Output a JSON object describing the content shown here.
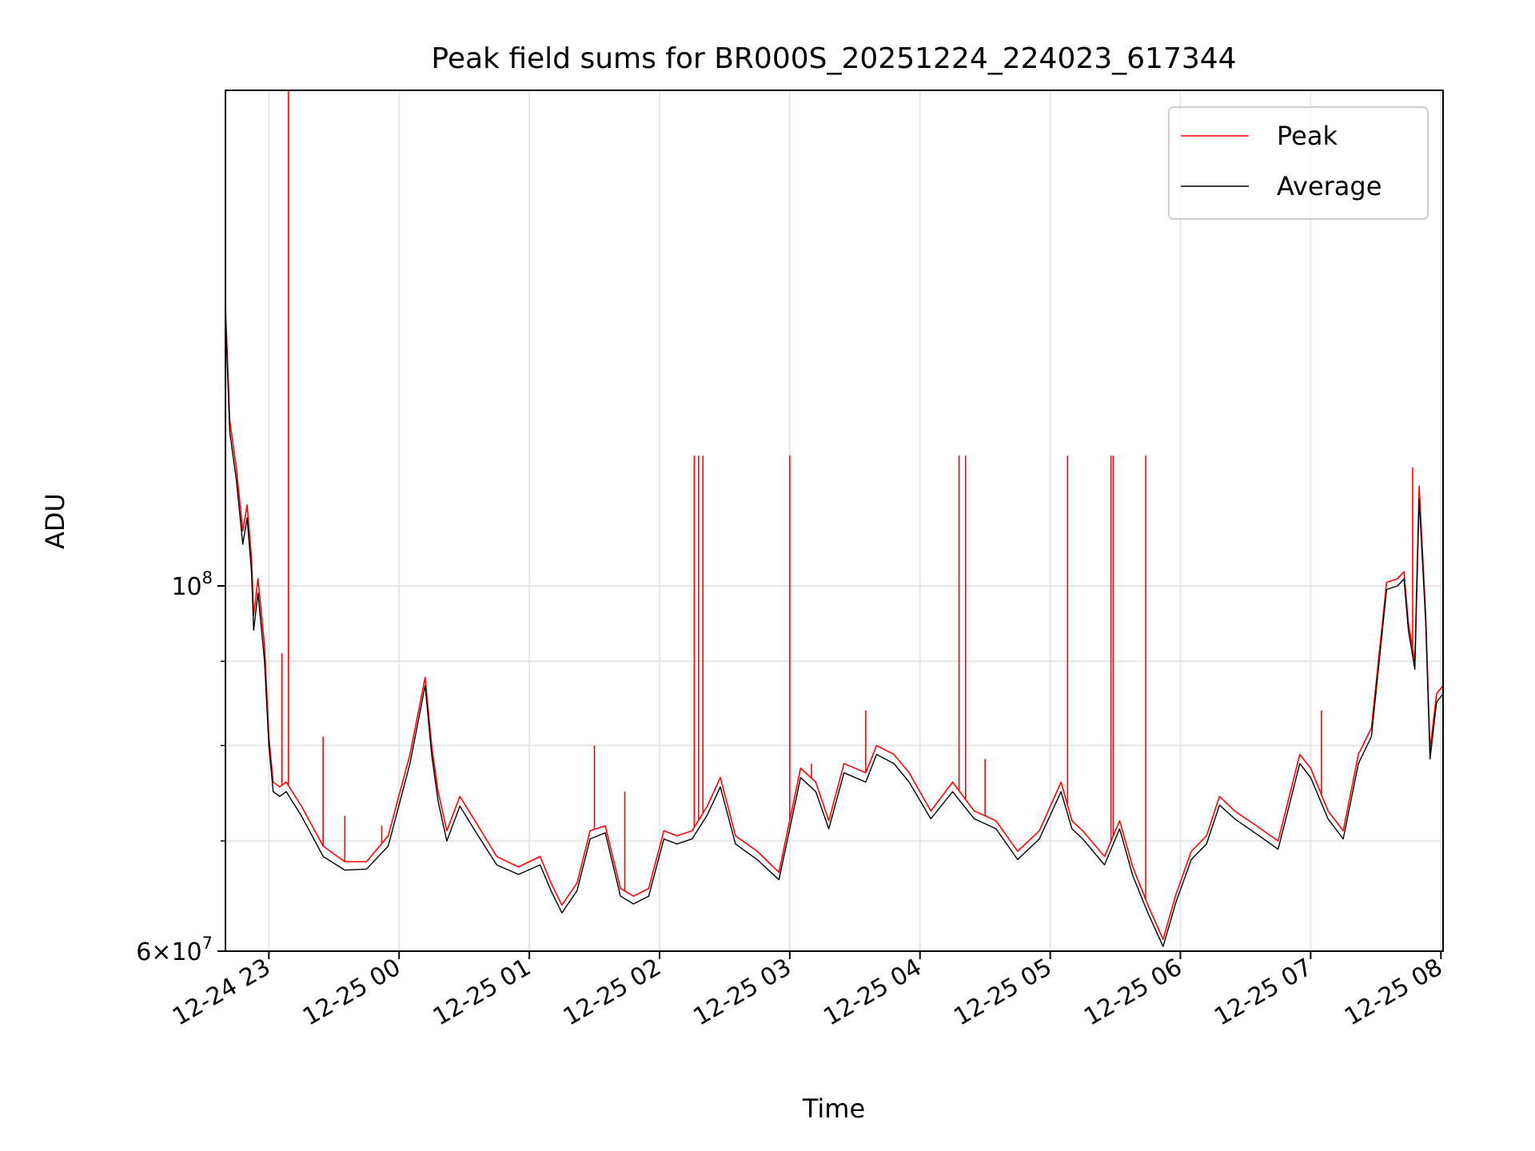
{
  "chart_data": {
    "type": "line",
    "title": "Peak field sums for BR000S_20251224_224023_617344",
    "xlabel": "Time",
    "ylabel": "ADU",
    "yscale": "log",
    "ylim": [
      60000000,
      200000000
    ],
    "xlim": [
      "12-24 22:40",
      "12-25 08:01"
    ],
    "grid": true,
    "legend_position": "top-right",
    "x_tick_labels": [
      "12-24 23",
      "12-25 00",
      "12-25 01",
      "12-25 02",
      "12-25 03",
      "12-25 04",
      "12-25 05",
      "12-25 06",
      "12-25 07",
      "12-25 08"
    ],
    "y_tick_labels": [
      {
        "value": 60000000,
        "base": "6",
        "times": "×10",
        "exp": "7"
      },
      {
        "value": 100000000,
        "base": "",
        "times": "10",
        "exp": "8"
      }
    ],
    "y_minor_ticks": [
      70000000,
      80000000,
      90000000
    ],
    "x": [
      "12-24 22:40",
      "12-24 22:42",
      "12-24 22:45",
      "12-24 22:48",
      "12-24 22:50",
      "12-24 22:52",
      "12-24 22:53",
      "12-24 22:55",
      "12-24 22:58",
      "12-24 23:00",
      "12-24 23:02",
      "12-24 23:05",
      "12-24 23:08",
      "12-24 23:15",
      "12-24 23:25",
      "12-24 23:35",
      "12-24 23:45",
      "12-24 23:55",
      "12-25 00:05",
      "12-25 00:12",
      "12-25 00:15",
      "12-25 00:18",
      "12-25 00:22",
      "12-25 00:28",
      "12-25 00:35",
      "12-25 00:45",
      "12-25 00:55",
      "12-25 01:05",
      "12-25 01:10",
      "12-25 01:15",
      "12-25 01:22",
      "12-25 01:28",
      "12-25 01:35",
      "12-25 01:42",
      "12-25 01:48",
      "12-25 01:55",
      "12-25 02:02",
      "12-25 02:08",
      "12-25 02:15",
      "12-25 02:22",
      "12-25 02:28",
      "12-25 02:35",
      "12-25 02:45",
      "12-25 02:55",
      "12-25 03:05",
      "12-25 03:12",
      "12-25 03:18",
      "12-25 03:25",
      "12-25 03:35",
      "12-25 03:40",
      "12-25 03:48",
      "12-25 03:55",
      "12-25 04:05",
      "12-25 04:15",
      "12-25 04:25",
      "12-25 04:35",
      "12-25 04:45",
      "12-25 04:55",
      "12-25 05:05",
      "12-25 05:10",
      "12-25 05:15",
      "12-25 05:25",
      "12-25 05:32",
      "12-25 05:38",
      "12-25 05:45",
      "12-25 05:52",
      "12-25 05:58",
      "12-25 06:05",
      "12-25 06:12",
      "12-25 06:18",
      "12-25 06:25",
      "12-25 06:35",
      "12-25 06:45",
      "12-25 06:55",
      "12-25 07:00",
      "12-25 07:08",
      "12-25 07:15",
      "12-25 07:22",
      "12-25 07:28",
      "12-25 07:35",
      "12-25 07:40",
      "12-25 07:43",
      "12-25 07:45",
      "12-25 07:48",
      "12-25 07:50",
      "12-25 07:53",
      "12-25 07:55",
      "12-25 07:58",
      "12-25 08:01"
    ],
    "series": [
      {
        "name": "Peak",
        "color": "#ff0000",
        "values": [
          148000000,
          126000000,
          118000000,
          108000000,
          112000000,
          104000000,
          96000000,
          101000000,
          92000000,
          81000000,
          76000000,
          75500000,
          76000000,
          73500000,
          69500000,
          68000000,
          68000000,
          70500000,
          79000000,
          88000000,
          80000000,
          75000000,
          71000000,
          74500000,
          72000000,
          68500000,
          67500000,
          68500000,
          66000000,
          64000000,
          66000000,
          71000000,
          71500000,
          65500000,
          64800000,
          65500000,
          71000000,
          70500000,
          71000000,
          73500000,
          76500000,
          70500000,
          69000000,
          67000000,
          77500000,
          76000000,
          72000000,
          78000000,
          77000000,
          80000000,
          79000000,
          77000000,
          73000000,
          76000000,
          73000000,
          72000000,
          69000000,
          71000000,
          76000000,
          72000000,
          71000000,
          68500000,
          72000000,
          67500000,
          64000000,
          61000000,
          65000000,
          69000000,
          70500000,
          74500000,
          73000000,
          71500000,
          70000000,
          79000000,
          77500000,
          73000000,
          71000000,
          79000000,
          82000000,
          100500000,
          101000000,
          102000000,
          95000000,
          90000000,
          115000000,
          96000000,
          79500000,
          86000000,
          87000000
        ]
      },
      {
        "name": "Average",
        "color": "#000000",
        "values": [
          146000000,
          124000000,
          116000000,
          106000000,
          110000000,
          102000000,
          94000000,
          99000000,
          90000000,
          80000000,
          75000000,
          74500000,
          75000000,
          72500000,
          68500000,
          67200000,
          67300000,
          69500000,
          78000000,
          87000000,
          79000000,
          74000000,
          70000000,
          73500000,
          71000000,
          67700000,
          66800000,
          67700000,
          65300000,
          63300000,
          65300000,
          70200000,
          70800000,
          64800000,
          64100000,
          64800000,
          70200000,
          69700000,
          70200000,
          72600000,
          75500000,
          69700000,
          68200000,
          66300000,
          76500000,
          75000000,
          71200000,
          77000000,
          76000000,
          79000000,
          78000000,
          76000000,
          72200000,
          75000000,
          72200000,
          71200000,
          68200000,
          70200000,
          75000000,
          71200000,
          70200000,
          67700000,
          71200000,
          66700000,
          63300000,
          60400000,
          64300000,
          68200000,
          69700000,
          73600000,
          72200000,
          70700000,
          69200000,
          78000000,
          76500000,
          72200000,
          70200000,
          78000000,
          81000000,
          99500000,
          100000000,
          101000000,
          94000000,
          89000000,
          113000000,
          95000000,
          78500000,
          85000000,
          86000000
        ]
      }
    ],
    "peak_spikes": [
      {
        "x": "12-24 23:09",
        "y": 200000000
      },
      {
        "x": "12-24 23:06",
        "y": 91000000
      },
      {
        "x": "12-24 23:25",
        "y": 81000000
      },
      {
        "x": "12-24 23:35",
        "y": 72500000
      },
      {
        "x": "12-24 23:52",
        "y": 71500000
      },
      {
        "x": "12-25 01:30",
        "y": 80000000
      },
      {
        "x": "12-25 01:44",
        "y": 75000000
      },
      {
        "x": "12-25 02:16",
        "y": 120000000
      },
      {
        "x": "12-25 02:18",
        "y": 120000000
      },
      {
        "x": "12-25 02:20",
        "y": 120000000
      },
      {
        "x": "12-25 03:00",
        "y": 120000000
      },
      {
        "x": "12-25 03:10",
        "y": 78000000
      },
      {
        "x": "12-25 03:35",
        "y": 84000000
      },
      {
        "x": "12-25 04:18",
        "y": 120000000
      },
      {
        "x": "12-25 04:21",
        "y": 120000000
      },
      {
        "x": "12-25 04:30",
        "y": 78500000
      },
      {
        "x": "12-25 05:08",
        "y": 120000000
      },
      {
        "x": "12-25 05:28",
        "y": 120000000
      },
      {
        "x": "12-25 05:29",
        "y": 120000000
      },
      {
        "x": "12-25 05:44",
        "y": 120000000
      },
      {
        "x": "12-25 07:05",
        "y": 84000000
      },
      {
        "x": "12-25 07:47",
        "y": 118000000
      }
    ]
  }
}
